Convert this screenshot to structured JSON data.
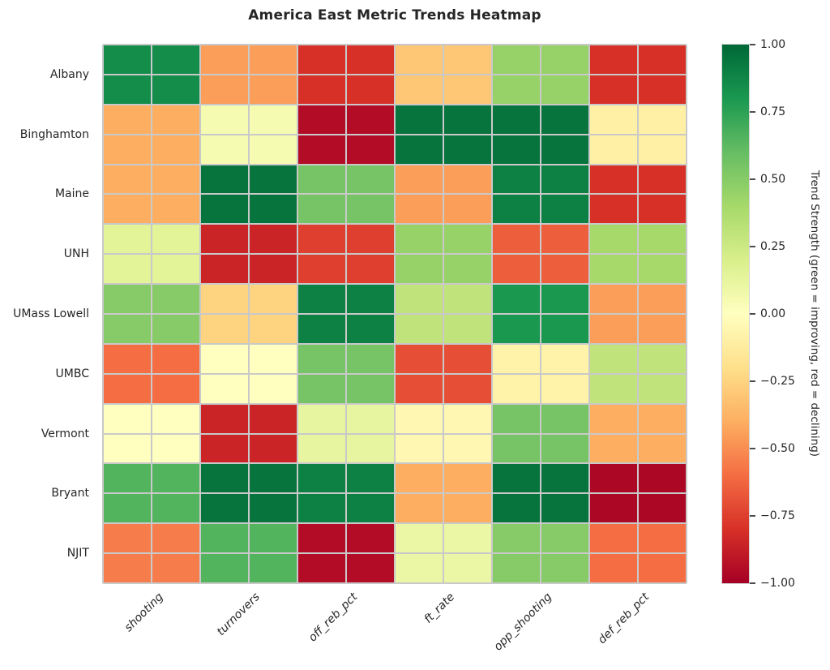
{
  "title": "America East Metric Trends Heatmap",
  "chart_data": {
    "type": "heatmap",
    "title": "America East Metric Trends Heatmap",
    "rows": [
      "Albany",
      "Binghamton",
      "Maine",
      "UNH",
      "UMass Lowell",
      "UMBC",
      "Vermont",
      "Bryant",
      "NJIT"
    ],
    "columns": [
      "shooting",
      "turnovers",
      "off_reb_pct",
      "ft_rate",
      "opp_shooting",
      "def_reb_pct"
    ],
    "values": [
      [
        0.85,
        -0.45,
        -0.8,
        -0.3,
        0.45,
        -0.8
      ],
      [
        -0.4,
        0.05,
        -0.95,
        0.95,
        0.95,
        -0.1
      ],
      [
        -0.4,
        0.95,
        0.55,
        -0.45,
        0.9,
        -0.8
      ],
      [
        0.15,
        -0.85,
        -0.75,
        0.45,
        -0.65,
        0.4
      ],
      [
        0.5,
        -0.25,
        0.9,
        0.3,
        0.8,
        -0.45
      ],
      [
        -0.6,
        0.0,
        0.55,
        -0.7,
        -0.08,
        0.3
      ],
      [
        0.0,
        -0.85,
        0.12,
        -0.05,
        0.55,
        -0.4
      ],
      [
        0.65,
        0.95,
        0.9,
        -0.4,
        0.95,
        -0.97
      ],
      [
        -0.55,
        0.65,
        -0.95,
        0.1,
        0.5,
        -0.6
      ]
    ],
    "vmin": -1.0,
    "vmax": 1.0,
    "colormap": "RdYlGn",
    "colormap_stops": [
      "#a50026",
      "#d73027",
      "#f46d43",
      "#fdae61",
      "#fee08b",
      "#ffffbf",
      "#d9ef8b",
      "#a6d96a",
      "#66bd63",
      "#1a9850",
      "#006837"
    ],
    "grid_color": "#c9c9c9",
    "grid_on": true,
    "legend_position": "right-colorbar",
    "colorbar": {
      "label": "Trend Strength (green = improving, red = declining)",
      "ticks": [
        "1.00",
        "0.75",
        "0.50",
        "0.25",
        "0.00",
        "−0.25",
        "−0.50",
        "−0.75",
        "−1.00"
      ],
      "tick_values": [
        1.0,
        0.75,
        0.5,
        0.25,
        0.0,
        -0.25,
        -0.5,
        -0.75,
        -1.0
      ]
    }
  }
}
